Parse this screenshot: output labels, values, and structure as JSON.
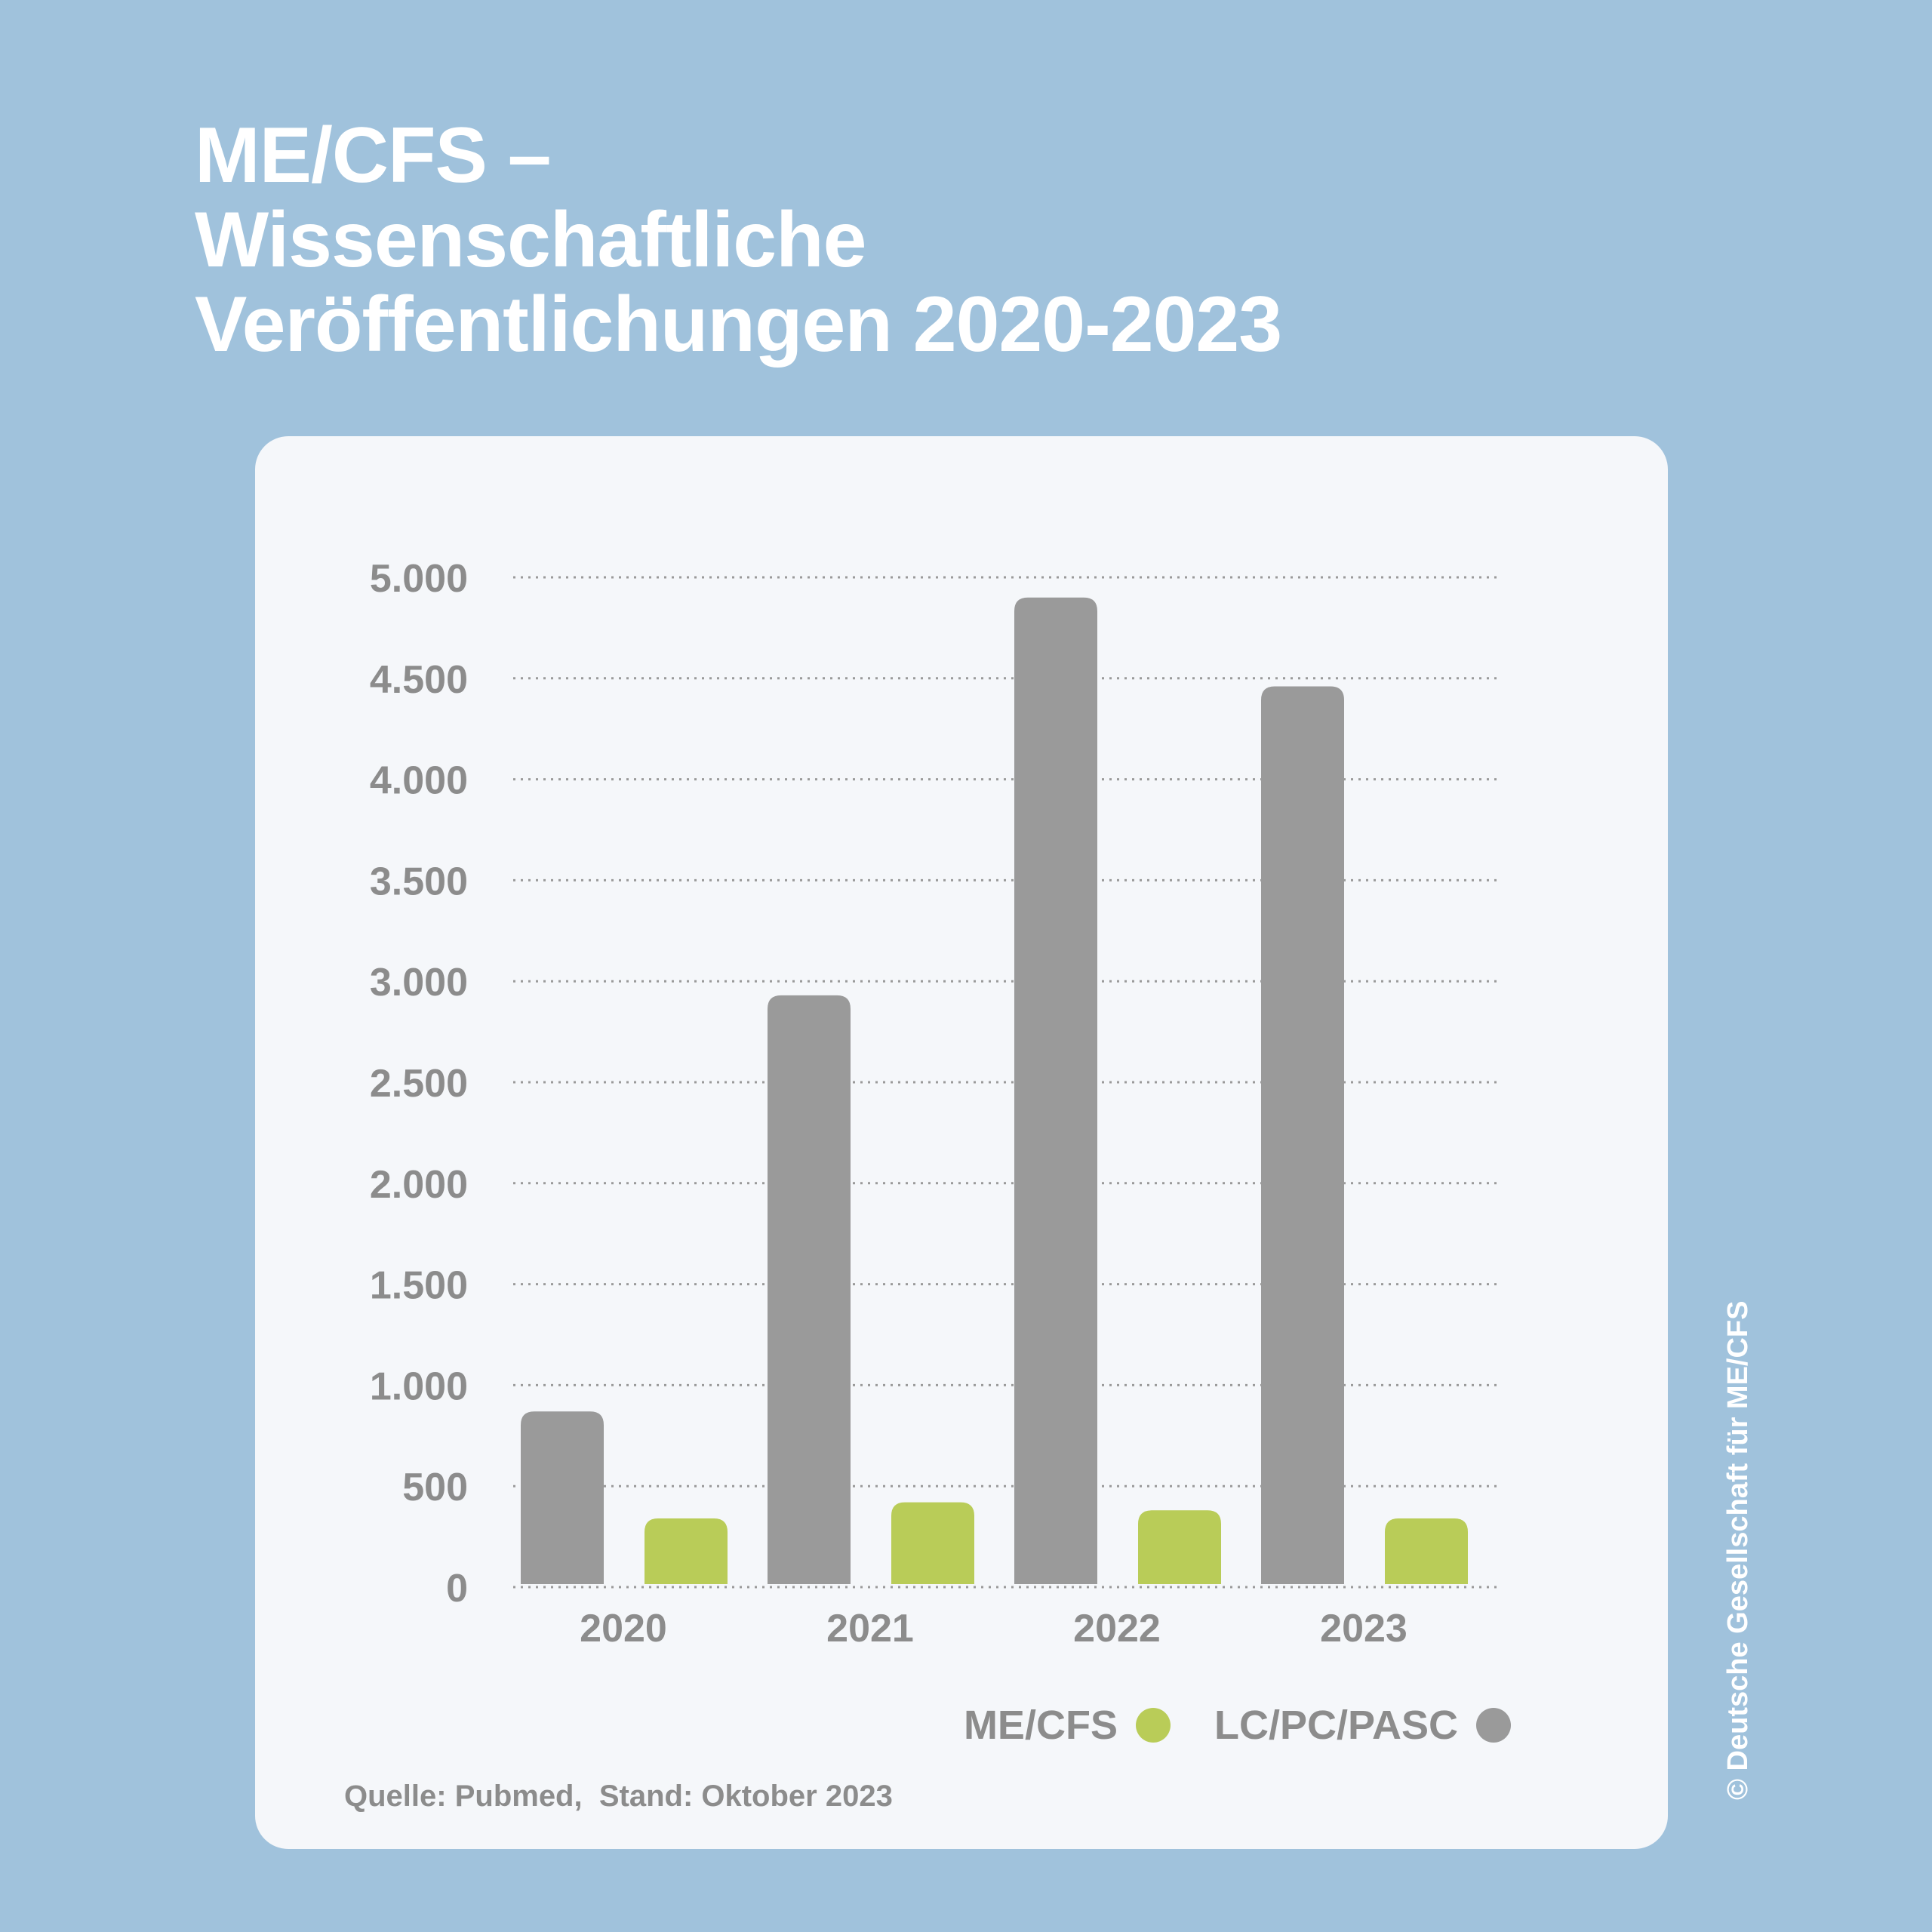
{
  "title_lines": [
    "ME/CFS –",
    "Wissenschaftliche",
    "Veröffentlichungen 2020-2023"
  ],
  "chart_data": {
    "type": "bar",
    "title": "ME/CFS – Wissenschaftliche Veröffentlichungen 2020-2023",
    "categories": [
      "2020",
      "2021",
      "2022",
      "2023"
    ],
    "series": [
      {
        "name": "LC/PC/PASC",
        "color": "#9a9a9a",
        "values": [
          870,
          2930,
          4900,
          4460
        ]
      },
      {
        "name": "ME/CFS",
        "color": "#b9cc58",
        "values": [
          340,
          420,
          380,
          340
        ]
      }
    ],
    "ylim": [
      0,
      5000
    ],
    "yticks": [
      0,
      500,
      1000,
      1500,
      2000,
      2500,
      3000,
      3500,
      4000,
      4500,
      5000
    ],
    "ytick_labels": [
      "0",
      "500",
      "1.000",
      "1.500",
      "2.000",
      "2.500",
      "3.000",
      "3.500",
      "4.000",
      "4.500",
      "5.000"
    ],
    "grid": "dotted horizontal",
    "legend_position": "bottom-right"
  },
  "legend": [
    {
      "label": "ME/CFS",
      "color": "#b9cc58"
    },
    {
      "label": "LC/PC/PASC",
      "color": "#9a9a9a"
    }
  ],
  "source": "Quelle: Pubmed,  Stand: Oktober 2023",
  "copyright": "© Deutsche Gesellschaft für ME/CFS"
}
